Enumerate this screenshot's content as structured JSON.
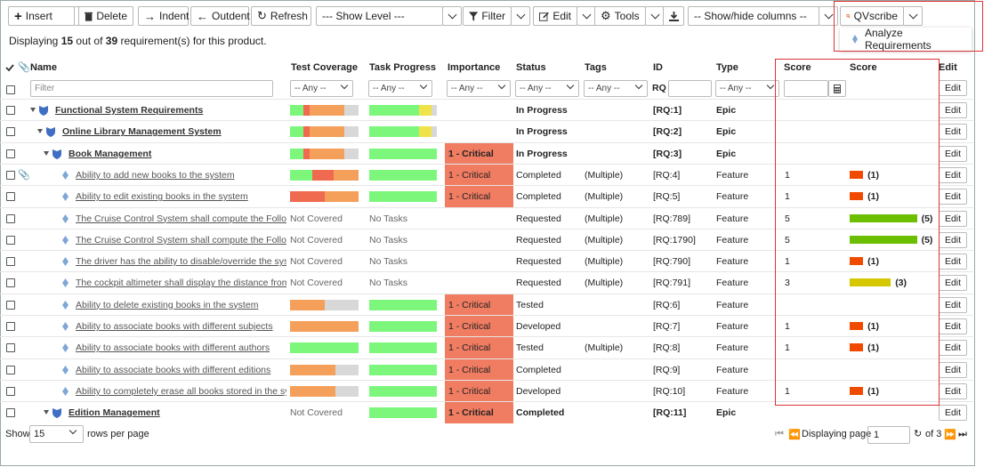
{
  "toolbar": {
    "insert": "Insert",
    "delete": "Delete",
    "indent": "Indent",
    "outdent": "Outdent",
    "refresh": "Refresh",
    "show_level": "--- Show Level ---",
    "filter": "Filter",
    "edit": "Edit",
    "tools": "Tools",
    "show_hide_columns": "-- Show/hide columns --",
    "qvscribe": "QVscribe",
    "qvscribe_menu_item": "Analyze Requirements"
  },
  "info": {
    "prefix": "Displaying",
    "shown": "15",
    "middle": "out of",
    "total": "39",
    "suffix": "requirement(s) for this product."
  },
  "columns": {
    "name": "Name",
    "test_coverage": "Test Coverage",
    "task_progress": "Task Progress",
    "importance": "Importance",
    "status": "Status",
    "tags": "Tags",
    "id": "ID",
    "type": "Type",
    "score1": "Score",
    "score2": "Score",
    "edit": "Edit"
  },
  "filters": {
    "name_placeholder": "Filter",
    "any": "-- Any --",
    "id_prefix": "RQ"
  },
  "colors": {
    "critical": "#f07c62",
    "pass": "#7cf77c",
    "fail": "#f06a4f",
    "blocked": "#f5a05a",
    "caution": "#f0e34a",
    "notrun": "#d8d8d8",
    "score_red": "#f04a00",
    "score_green": "#6bbe00",
    "score_yellow": "#d6c800"
  },
  "rows": [
    {
      "indent": 1,
      "icon": "shield",
      "bold": true,
      "name": "Functional System Requirements",
      "coverage": [
        0.19,
        0.09,
        0.51,
        0.21
      ],
      "progress": [
        0.74,
        0.18,
        0.08
      ],
      "importance": "",
      "status": "In Progress",
      "tags": "",
      "id": "[RQ:1]",
      "type": "Epic",
      "score": "",
      "score_bar": "",
      "score_val": "",
      "score_color": ""
    },
    {
      "indent": 2,
      "icon": "shield",
      "bold": true,
      "name": "Online Library Management System",
      "coverage": [
        0.19,
        0.09,
        0.51,
        0.21
      ],
      "progress": [
        0.74,
        0.18,
        0.08
      ],
      "importance": "",
      "status": "In Progress",
      "tags": "",
      "id": "[RQ:2]",
      "type": "Epic",
      "score": "",
      "score_bar": "",
      "score_val": "",
      "score_color": ""
    },
    {
      "indent": 3,
      "icon": "shield",
      "bold": true,
      "name": "Book Management",
      "coverage": [
        0.19,
        0.09,
        0.51,
        0.21
      ],
      "progress": [
        1,
        0,
        0
      ],
      "importance": "1 - Critical",
      "status": "In Progress",
      "tags": "",
      "id": "[RQ:3]",
      "type": "Epic",
      "score": "",
      "score_bar": "",
      "score_val": "",
      "score_color": ""
    },
    {
      "indent": 4,
      "icon": "diamond",
      "bold": false,
      "clip": true,
      "name": "Ability to add new books to the system",
      "coverage": [
        0.32,
        0.32,
        0.36,
        0
      ],
      "progress": [
        1,
        0,
        0
      ],
      "importance": "1 - Critical",
      "status": "Completed",
      "tags": "(Multiple)",
      "id": "[RQ:4]",
      "type": "Feature",
      "score": "1",
      "score_bar": 0.18,
      "score_val": "(1)",
      "score_color": "red"
    },
    {
      "indent": 4,
      "icon": "diamond",
      "bold": false,
      "name": "Ability to edit existing books in the system",
      "coverage": [
        0,
        0.5,
        0.5,
        0
      ],
      "progress": [
        1,
        0,
        0
      ],
      "importance": "1 - Critical",
      "status": "Completed",
      "tags": "(Multiple)",
      "id": "[RQ:5]",
      "type": "Feature",
      "score": "1",
      "score_bar": 0.18,
      "score_val": "(1)",
      "score_color": "red"
    },
    {
      "indent": 4,
      "icon": "diamond",
      "bold": false,
      "name": "The Cruise Control System shall compute the Following",
      "coverage": null,
      "coverage_text": "Not Covered",
      "progress": null,
      "progress_text": "No Tasks",
      "importance": "",
      "status": "Requested",
      "tags": "(Multiple)",
      "id": "[RQ:789]",
      "type": "Feature",
      "score": "5",
      "score_bar": 0.9,
      "score_val": "(5)",
      "score_color": "green"
    },
    {
      "indent": 4,
      "icon": "diamond",
      "bold": false,
      "name": "The Cruise Control System shall compute the Following",
      "coverage": null,
      "coverage_text": "Not Covered",
      "progress": null,
      "progress_text": "No Tasks",
      "importance": "",
      "status": "Requested",
      "tags": "(Multiple)",
      "id": "[RQ:1790]",
      "type": "Feature",
      "score": "5",
      "score_bar": 0.9,
      "score_val": "(5)",
      "score_color": "green"
    },
    {
      "indent": 4,
      "icon": "diamond",
      "bold": false,
      "name": "The driver has the ability to disable/override the system",
      "coverage": null,
      "coverage_text": "Not Covered",
      "progress": null,
      "progress_text": "No Tasks",
      "importance": "",
      "status": "Requested",
      "tags": "(Multiple)",
      "id": "[RQ:790]",
      "type": "Feature",
      "score": "1",
      "score_bar": 0.18,
      "score_val": "(1)",
      "score_color": "red"
    },
    {
      "indent": 4,
      "icon": "diamond",
      "bold": false,
      "name": "The cockpit altimeter shall display the distance from the",
      "coverage": null,
      "coverage_text": "Not Covered",
      "progress": null,
      "progress_text": "No Tasks",
      "importance": "",
      "status": "Requested",
      "tags": "(Multiple)",
      "id": "[RQ:791]",
      "type": "Feature",
      "score": "3",
      "score_bar": 0.55,
      "score_val": "(3)",
      "score_color": "yellow"
    },
    {
      "indent": 4,
      "icon": "diamond",
      "bold": false,
      "name": "Ability to delete existing books in the system",
      "coverage": [
        0,
        0,
        0.5,
        0.5
      ],
      "progress": [
        1,
        0,
        0
      ],
      "importance": "1 - Critical",
      "status": "Tested",
      "tags": "",
      "id": "[RQ:6]",
      "type": "Feature",
      "score": "",
      "score_bar": "",
      "score_val": "",
      "score_color": ""
    },
    {
      "indent": 4,
      "icon": "diamond",
      "bold": false,
      "name": "Ability to associate books with different subjects",
      "coverage": [
        0,
        0,
        1,
        0
      ],
      "progress": [
        1,
        0,
        0
      ],
      "importance": "1 - Critical",
      "status": "Developed",
      "tags": "",
      "id": "[RQ:7]",
      "type": "Feature",
      "score": "1",
      "score_bar": 0.18,
      "score_val": "(1)",
      "score_color": "red"
    },
    {
      "indent": 4,
      "icon": "diamond",
      "bold": false,
      "name": "Ability to associate books with different authors",
      "coverage": [
        1,
        0,
        0,
        0
      ],
      "progress": [
        1,
        0,
        0
      ],
      "importance": "1 - Critical",
      "status": "Tested",
      "tags": "(Multiple)",
      "id": "[RQ:8]",
      "type": "Feature",
      "score": "1",
      "score_bar": 0.18,
      "score_val": "(1)",
      "score_color": "red"
    },
    {
      "indent": 4,
      "icon": "diamond",
      "bold": false,
      "name": "Ability to associate books with different editions",
      "coverage": [
        0,
        0,
        0.66,
        0.34
      ],
      "progress": [
        1,
        0,
        0
      ],
      "importance": "1 - Critical",
      "status": "Completed",
      "tags": "",
      "id": "[RQ:9]",
      "type": "Feature",
      "score": "",
      "score_bar": "",
      "score_val": "",
      "score_color": ""
    },
    {
      "indent": 4,
      "icon": "diamond",
      "bold": false,
      "name": "Ability to completely erase all books stored in the system",
      "coverage": [
        0,
        0,
        0.66,
        0.34
      ],
      "progress": [
        1,
        0,
        0
      ],
      "importance": "1 - Critical",
      "status": "Developed",
      "tags": "",
      "id": "[RQ:10]",
      "type": "Feature",
      "score": "1",
      "score_bar": 0.18,
      "score_val": "(1)",
      "score_color": "red"
    },
    {
      "indent": 3,
      "icon": "shield",
      "bold": true,
      "name": "Edition Management",
      "coverage": null,
      "coverage_text": "Not Covered",
      "progress": [
        1,
        0,
        0
      ],
      "importance": "1 - Critical",
      "status": "Completed",
      "tags": "",
      "id": "[RQ:11]",
      "type": "Epic",
      "score": "",
      "score_bar": "",
      "score_val": "",
      "score_color": ""
    }
  ],
  "edit_label": "Edit",
  "footer": {
    "show": "Show",
    "rows_per_page_value": "15",
    "rows_per_page": "rows per page",
    "displaying_page": "Displaying page",
    "page": "1",
    "of": "of 3"
  }
}
